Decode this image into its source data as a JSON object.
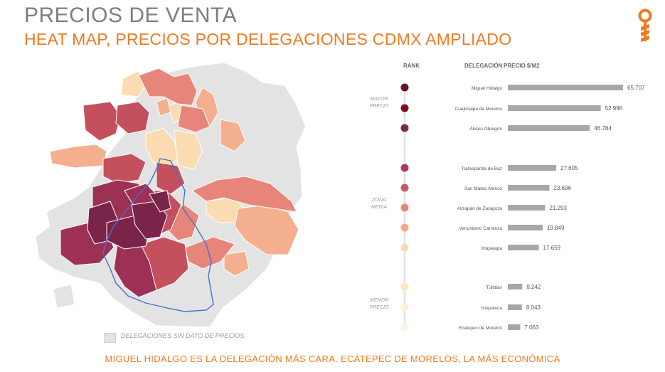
{
  "header": {
    "title": "PRECIOS DE VENTA",
    "subtitle": "HEAT MAP, PRECIOS POR DELEGACIONES CDMX AMPLIADO"
  },
  "map": {
    "legend_label": "DELEGACIONES SIN DATO DE PRECIOS",
    "no_data_color": "#e3e3e4",
    "scale_colors": [
      "#7a2449",
      "#9c3155",
      "#c4505e",
      "#e8857a",
      "#f4b08e",
      "#fbdcb2"
    ]
  },
  "footer": {
    "text": "MIGUEL HIDALGO ES LA DELEGACIÓN MÁS CARA. ECATEPEC DE MORELOS, LA MÁS ECONÓMICA"
  },
  "logo": {
    "icon": "key-pin-icon",
    "color": "#f07a1f"
  },
  "chart_data": {
    "type": "bar",
    "orientation": "horizontal",
    "column_headers": {
      "rank": "RANK",
      "delegation": "DELEGACIÓN",
      "price": "PRECIO $/M2"
    },
    "group_labels": [
      {
        "lines": [
          "MAYOR",
          "PRECIO"
        ]
      },
      {
        "lines": [
          "ZONA",
          "MEDIA"
        ]
      },
      {
        "lines": [
          "MENOR",
          "PRECIO"
        ]
      }
    ],
    "categories": [
      "Miguel Hidalgo",
      "Cuajimalpa de Morelos",
      "Álvaro Obregón",
      "Tlalnepantla de Baz",
      "San Mateo Atenco",
      "Atizapán de Zaragoza",
      "Venustiano Carranza",
      "Iztapalapa",
      "Tultitlán",
      "Ixtapaluca",
      "Ecatepec de Morelos"
    ],
    "values": [
      65707,
      52996,
      46784,
      27605,
      23696,
      21293,
      19849,
      17659,
      8242,
      8043,
      7063
    ],
    "value_labels": [
      "65.707",
      "52.996",
      "46.784",
      "27.605",
      "23.696",
      "21.293",
      "19.849",
      "17.659",
      "8.242",
      "8.043",
      "7.063"
    ],
    "groups": [
      0,
      0,
      0,
      1,
      1,
      1,
      1,
      1,
      2,
      2,
      2
    ],
    "rank_colors": [
      "#6e0f1f",
      "#7a1020",
      "#7d2a48",
      "#b03a52",
      "#c65a6c",
      "#e8857a",
      "#f4a989",
      "#fbd9ad",
      "#fce9c2",
      "#fdf1d8",
      "#fdf4e2"
    ],
    "bar_color": "#a7a7a7",
    "xlim": [
      0,
      70000
    ]
  }
}
